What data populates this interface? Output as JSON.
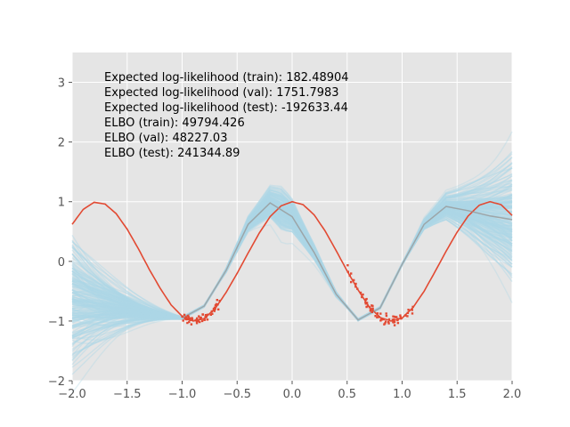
{
  "chart_data": {
    "type": "line",
    "title": "",
    "xlabel": "",
    "ylabel": "",
    "xlim": [
      -2.0,
      2.0
    ],
    "ylim": [
      -2.0,
      3.5
    ],
    "grid": true,
    "background": "#e5e5e5",
    "x_ticks": [
      "−2.0",
      "−1.5",
      "−1.0",
      "−0.5",
      "0.0",
      "0.5",
      "1.0",
      "1.5",
      "2.0"
    ],
    "x_tick_values": [
      -2.0,
      -1.5,
      -1.0,
      -0.5,
      0.0,
      0.5,
      1.0,
      1.5,
      2.0
    ],
    "y_ticks": [
      "−2",
      "−1",
      "0",
      "1",
      "2",
      "3"
    ],
    "y_tick_values": [
      -2,
      -1,
      0,
      1,
      2,
      3
    ],
    "annotations": [
      "Expected log-likelihood (train): 182.48904",
      "Expected log-likelihood (val): 1751.7983",
      "Expected log-likelihood (test): -192633.44",
      "ELBO (train): 49794.426",
      "ELBO (val): 48227.03",
      "ELBO (test): 241344.89"
    ],
    "series": [
      {
        "role": "true_function",
        "color": "#e24a33",
        "x": [
          -2.0,
          -1.9,
          -1.8,
          -1.7,
          -1.6,
          -1.5,
          -1.4,
          -1.3,
          -1.2,
          -1.1,
          -1.0,
          -0.9,
          -0.8,
          -0.7,
          -0.6,
          -0.5,
          -0.4,
          -0.3,
          -0.2,
          -0.1,
          0.0,
          0.1,
          0.2,
          0.3,
          0.4,
          0.5,
          0.6,
          0.7,
          0.8,
          0.9,
          1.0,
          1.1,
          1.2,
          1.3,
          1.4,
          1.5,
          1.6,
          1.7,
          1.8,
          1.9,
          2.0
        ],
        "y": [
          0.62,
          0.87,
          0.99,
          0.96,
          0.8,
          0.54,
          0.22,
          -0.13,
          -0.45,
          -0.73,
          -0.92,
          -1.0,
          -0.96,
          -0.79,
          -0.52,
          -0.2,
          0.14,
          0.47,
          0.75,
          0.93,
          1.0,
          0.95,
          0.78,
          0.51,
          0.18,
          -0.16,
          -0.48,
          -0.76,
          -0.94,
          -1.0,
          -0.95,
          -0.77,
          -0.5,
          -0.17,
          0.17,
          0.49,
          0.76,
          0.94,
          1.0,
          0.95,
          0.77
        ]
      },
      {
        "role": "posterior_mean",
        "color": "#999999",
        "x": [
          -1.0,
          -0.8,
          -0.6,
          -0.4,
          -0.2,
          0.0,
          0.2,
          0.4,
          0.6,
          0.8,
          1.0,
          1.2,
          1.4,
          1.6,
          1.8,
          2.0
        ],
        "y": [
          -0.95,
          -0.75,
          -0.15,
          0.62,
          0.98,
          0.75,
          0.15,
          -0.55,
          -0.98,
          -0.78,
          -0.05,
          0.62,
          0.92,
          0.85,
          0.76,
          0.7
        ]
      }
    ],
    "observations": {
      "color": "#e24a33",
      "clusters": [
        {
          "x_range": [
            -1.0,
            -0.65
          ],
          "count": 60
        },
        {
          "x_range": [
            0.5,
            1.1
          ],
          "count": 70
        }
      ]
    },
    "posterior_samples": {
      "color": "#add8e6",
      "count": 200
    }
  }
}
